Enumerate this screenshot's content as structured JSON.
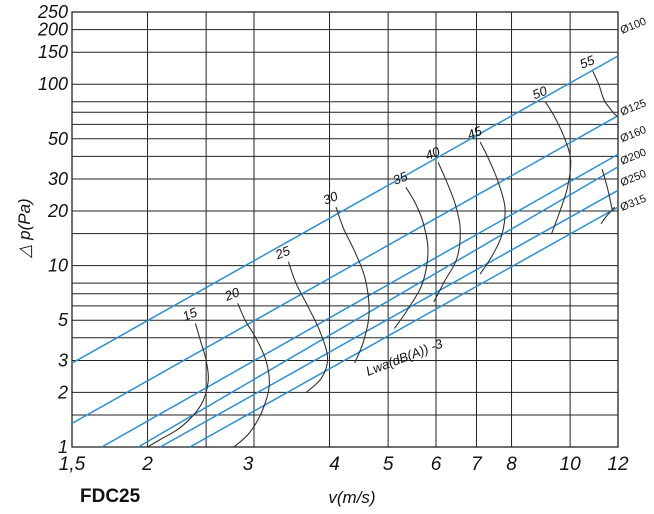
{
  "chart_data": {
    "type": "line",
    "xlabel": "v(m/s)",
    "ylabel": "△ p(Pa)",
    "xscale": "log",
    "yscale": "log",
    "xlim": [
      1.5,
      12
    ],
    "ylim": [
      1,
      250
    ],
    "x_ticks": [
      {
        "value": 1.5,
        "label": "1,5"
      },
      {
        "value": 2,
        "label": "2"
      },
      {
        "value": 3,
        "label": "3"
      },
      {
        "value": 4,
        "label": "4"
      },
      {
        "value": 5,
        "label": "5"
      },
      {
        "value": 6,
        "label": "6"
      },
      {
        "value": 7,
        "label": "7"
      },
      {
        "value": 8,
        "label": "8"
      },
      {
        "value": 10,
        "label": "10"
      },
      {
        "value": 12,
        "label": "12"
      }
    ],
    "x_grid": [
      1.5,
      2,
      2.5,
      3,
      4,
      5,
      6,
      7,
      8,
      10,
      12
    ],
    "y_ticks": [
      1,
      2,
      3,
      5,
      10,
      20,
      30,
      50,
      100,
      150,
      200,
      250
    ],
    "y_grid": [
      1,
      1.5,
      2,
      3,
      4,
      5,
      6,
      7,
      8,
      10,
      15,
      20,
      30,
      40,
      50,
      60,
      70,
      80,
      100,
      150,
      200,
      250
    ],
    "grid": true,
    "colors": {
      "duct_lines": "#2a90d6",
      "noise_curves": "#333333",
      "grid": "#222222"
    },
    "series": [
      {
        "name": "Ø100",
        "x": [
          1.5,
          12
        ],
        "y": [
          2.9,
          143
        ]
      },
      {
        "name": "Ø125",
        "x": [
          1.5,
          12
        ],
        "y": [
          1.35,
          67
        ]
      },
      {
        "name": "Ø160",
        "x": [
          1.68,
          12
        ],
        "y": [
          1,
          41
        ]
      },
      {
        "name": "Ø200",
        "x": [
          1.93,
          12
        ],
        "y": [
          1,
          35
        ]
      },
      {
        "name": "Ø250",
        "x": [
          2.1,
          12
        ],
        "y": [
          1,
          26
        ]
      },
      {
        "name": "Ø315",
        "x": [
          2.35,
          12
        ],
        "y": [
          1,
          21
        ]
      }
    ],
    "noise_curves": [
      {
        "label": "15",
        "x": [
          2.4,
          2.45,
          2.5,
          2.52,
          2.45,
          2.28,
          2.1,
          2.0
        ],
        "y": [
          4.8,
          3.8,
          3.0,
          2.3,
          1.7,
          1.3,
          1.1,
          1.0
        ]
      },
      {
        "label": "20",
        "x": [
          2.82,
          2.9,
          3.02,
          3.14,
          3.18,
          3.1,
          2.95,
          2.78
        ],
        "y": [
          6.2,
          5.0,
          4.0,
          3.0,
          2.2,
          1.6,
          1.2,
          1.0
        ]
      },
      {
        "label": "25",
        "x": [
          3.42,
          3.52,
          3.68,
          3.86,
          3.97,
          3.88,
          3.66
        ],
        "y": [
          10.5,
          8.0,
          6.0,
          4.3,
          3.1,
          2.4,
          2.0
        ]
      },
      {
        "label": "30",
        "x": [
          4.1,
          4.22,
          4.4,
          4.58,
          4.65,
          4.55,
          4.4
        ],
        "y": [
          21,
          16,
          12,
          8.5,
          5.5,
          3.8,
          2.9
        ]
      },
      {
        "label": "35",
        "x": [
          5.35,
          5.55,
          5.72,
          5.82,
          5.7,
          5.4,
          5.12
        ],
        "y": [
          27,
          22,
          17,
          12,
          8.0,
          5.8,
          4.5
        ]
      },
      {
        "label": "40",
        "x": [
          6.05,
          6.25,
          6.45,
          6.58,
          6.5,
          6.2,
          5.95
        ],
        "y": [
          37,
          29,
          22,
          16,
          11,
          8.2,
          6.3
        ]
      },
      {
        "label": "45",
        "x": [
          7.1,
          7.35,
          7.6,
          7.8,
          7.72,
          7.45,
          7.1
        ],
        "y": [
          48,
          38,
          29,
          21,
          15,
          11.5,
          9.0
        ]
      },
      {
        "label": "50",
        "x": [
          9.1,
          9.45,
          9.8,
          10.02,
          9.9,
          9.62,
          9.32
        ],
        "y": [
          80,
          65,
          50,
          38,
          27,
          20,
          15
        ]
      },
      {
        "label": "55",
        "x": [
          10.9,
          11.15,
          11.3,
          11.42,
          11.62,
          11.82,
          12.0
        ],
        "y": [
          118,
          100,
          87,
          80,
          74,
          69,
          66
        ]
      }
    ],
    "partial_curves": [
      {
        "x": [
          11.3,
          11.55,
          11.75
        ],
        "y": [
          34,
          26,
          20
        ]
      },
      {
        "x": [
          11.25,
          11.45,
          11.85
        ],
        "y": [
          17,
          18.5,
          21
        ]
      }
    ],
    "annotation": "Lwa(dB(A)) -3"
  },
  "model_label": "FDC25"
}
